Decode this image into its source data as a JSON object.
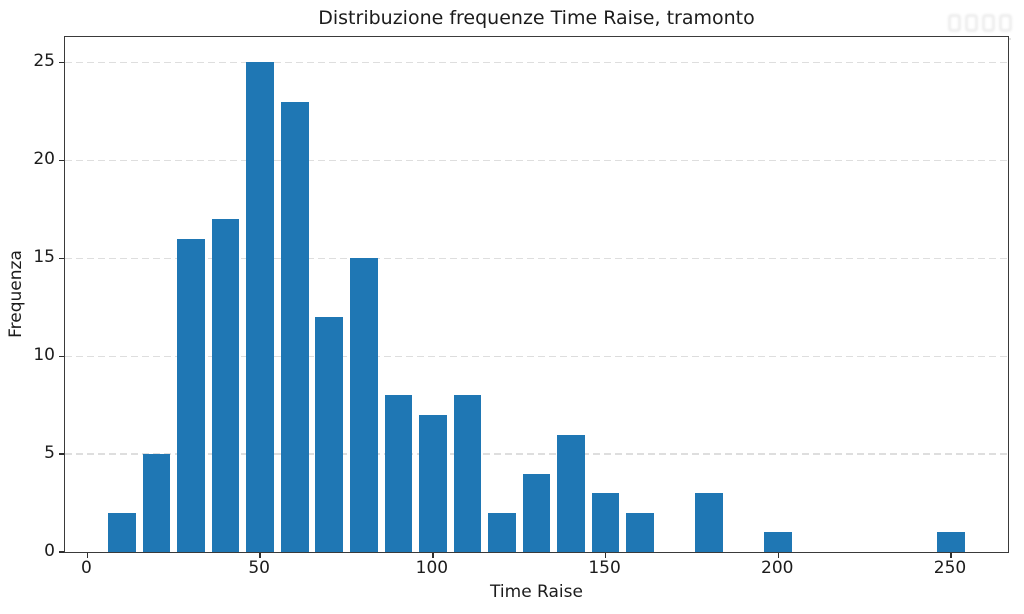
{
  "chart_data": {
    "type": "bar",
    "subtype": "histogram",
    "title": "Distribuzione frequenze Time Raise, tramonto",
    "xlabel": "Time Raise",
    "ylabel": "Frequenza",
    "bin_width": 10,
    "bin_start": 5,
    "bar_rwidth": 0.8,
    "categories": [
      10,
      20,
      30,
      40,
      50,
      60,
      70,
      80,
      90,
      100,
      110,
      120,
      130,
      140,
      150,
      160,
      170,
      180,
      190,
      200,
      210,
      220,
      230,
      240,
      250
    ],
    "values": [
      2,
      5,
      16,
      17,
      25,
      23,
      12,
      15,
      8,
      7,
      8,
      2,
      4,
      6,
      3,
      2,
      0,
      3,
      0,
      1,
      0,
      0,
      0,
      0,
      1
    ],
    "x_ticks": [
      0,
      50,
      100,
      150,
      200,
      250
    ],
    "y_ticks": [
      0,
      5,
      10,
      15,
      20,
      25
    ],
    "xlim": [
      -6.5,
      266.5
    ],
    "ylim": [
      0,
      26.3
    ],
    "grid": {
      "axis": "y",
      "style": "dashed",
      "color": "#dedede"
    },
    "legend": "none",
    "bar_color": "#1f77b4",
    "spine_color": "#3a3a3a",
    "text_color": "#1c1c1c"
  },
  "watermark": {
    "present": true,
    "legible": false,
    "position": "top-right"
  }
}
